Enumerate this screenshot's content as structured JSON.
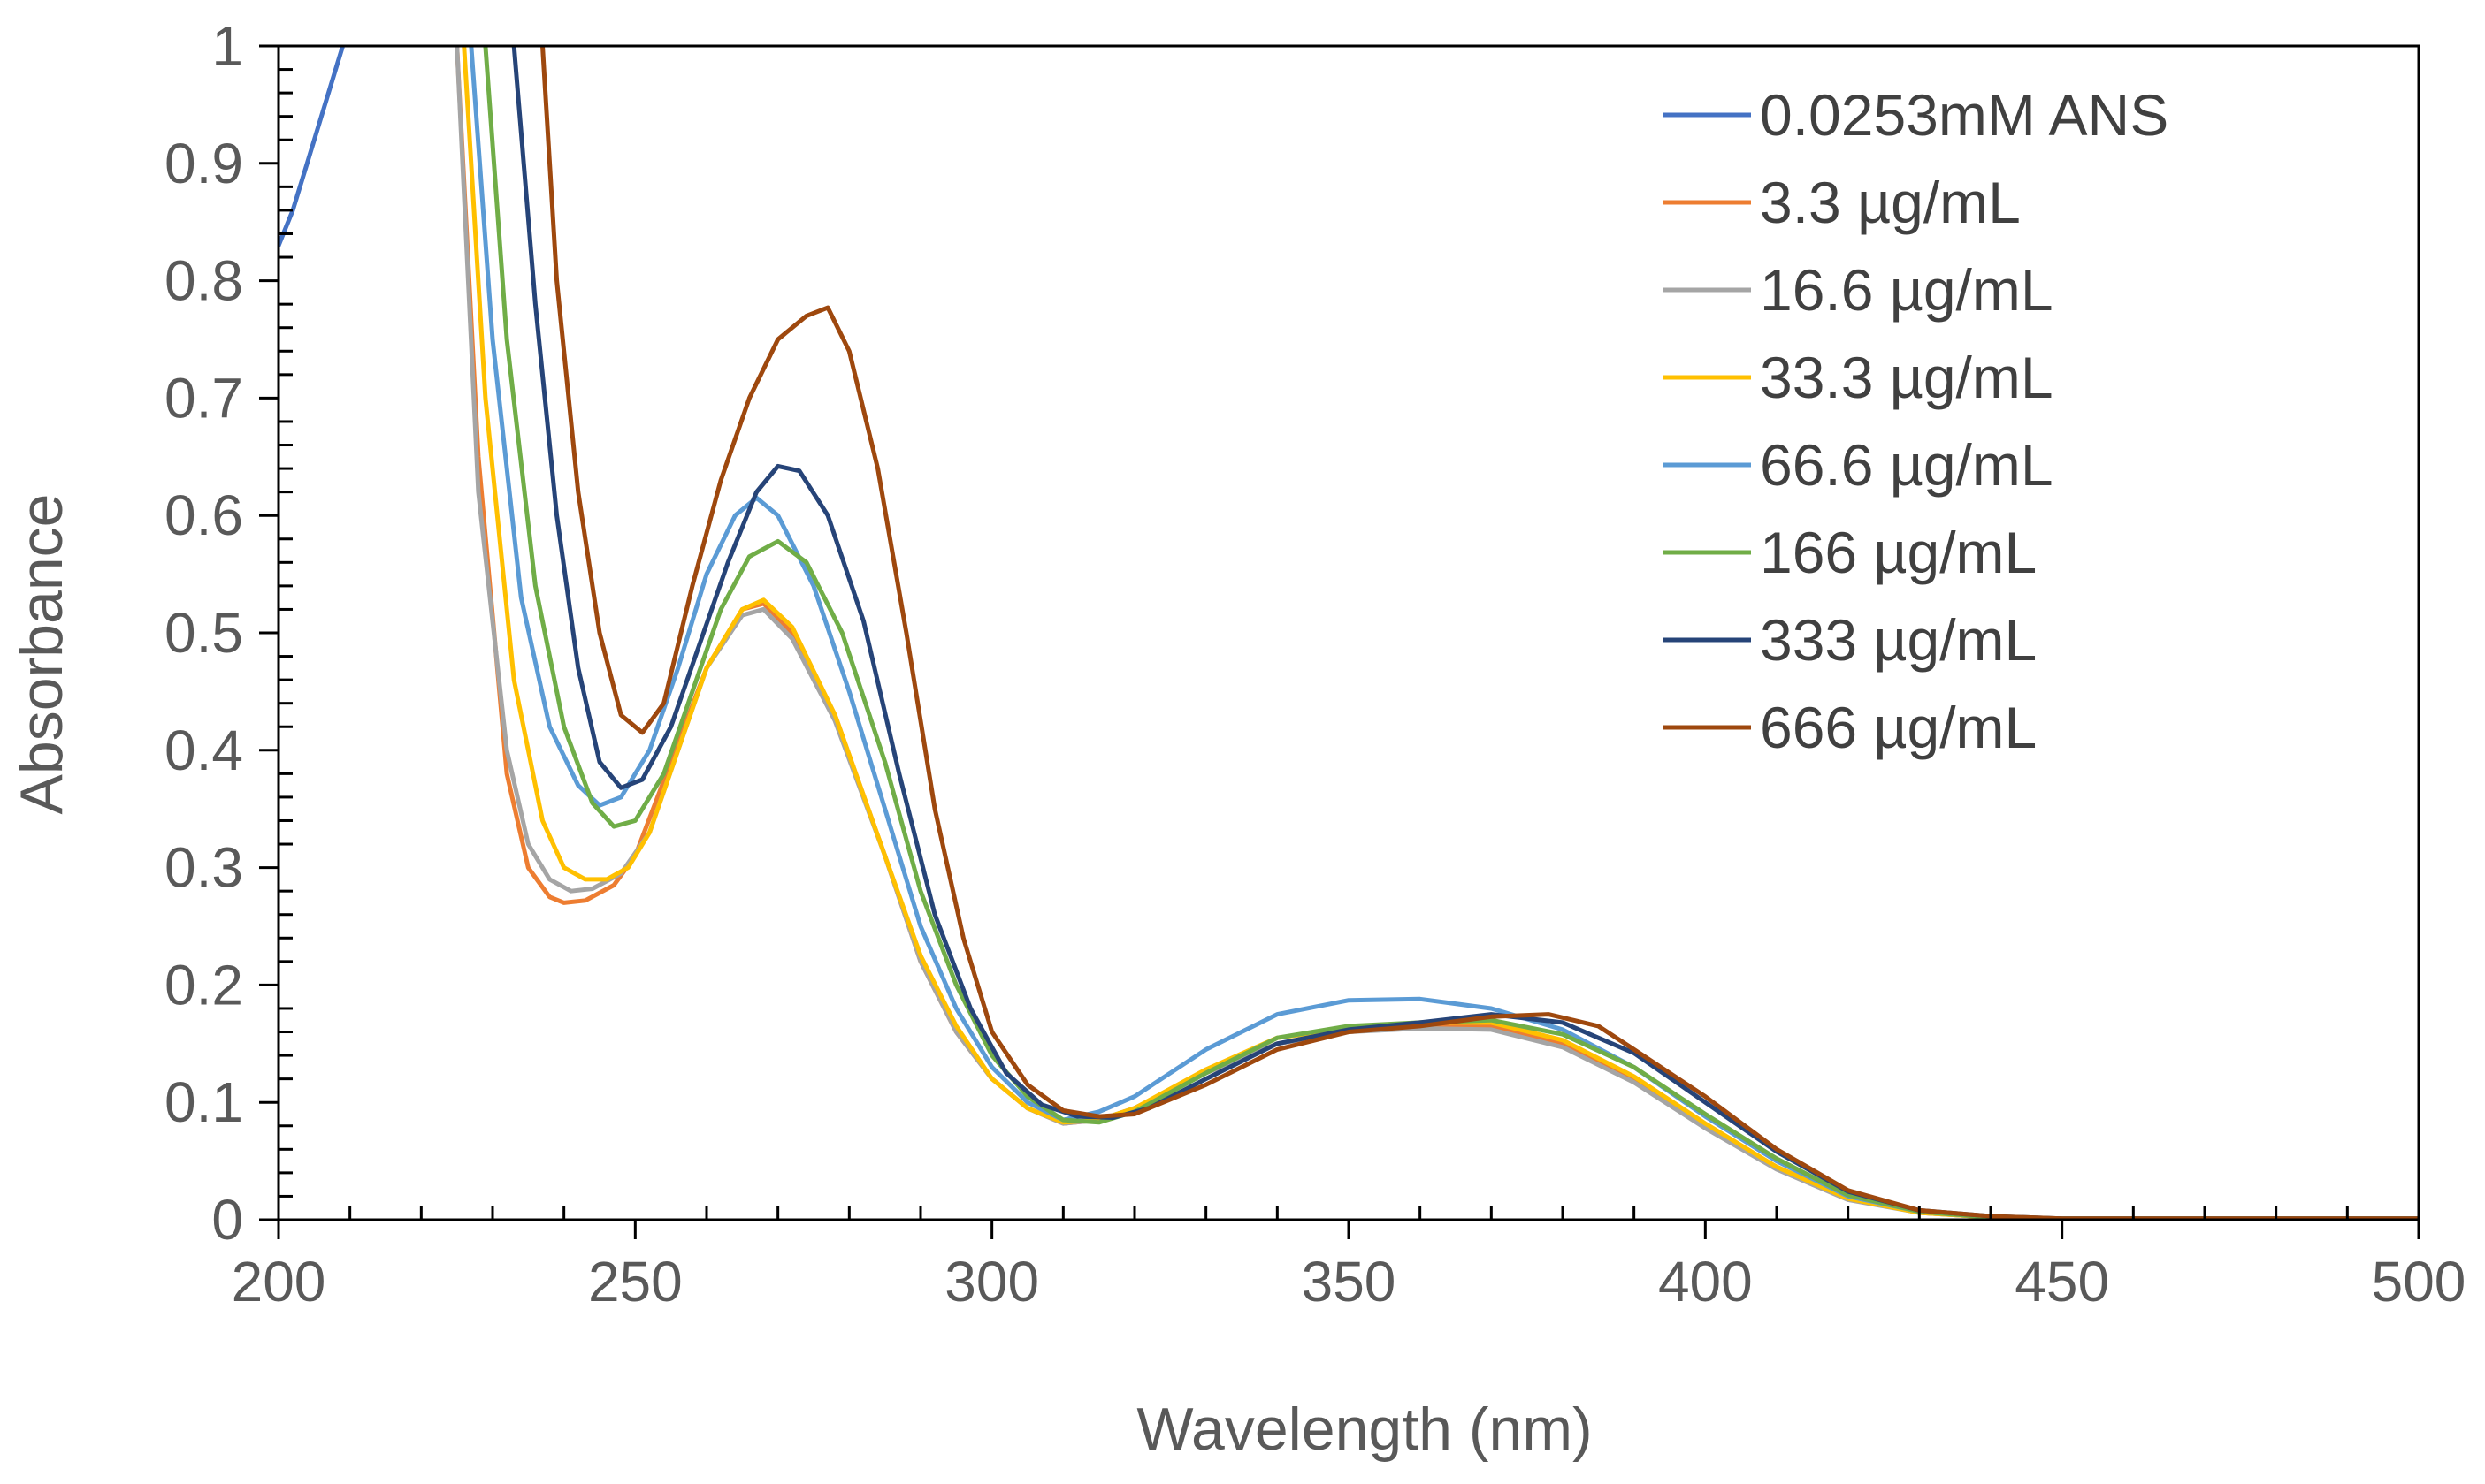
{
  "chart_data": {
    "type": "line",
    "title": "",
    "xlabel": "Wavelength (nm)",
    "ylabel": "Absorbance",
    "xlim": [
      200,
      500
    ],
    "ylim": [
      0,
      1
    ],
    "x_ticks": [
      200,
      250,
      300,
      350,
      400,
      450,
      500
    ],
    "x_tick_labels": [
      "200",
      "250",
      "300",
      "350",
      "400",
      "450",
      "500"
    ],
    "y_ticks": [
      0,
      0.1,
      0.2,
      0.3,
      0.4,
      0.5,
      0.6,
      0.7,
      0.8,
      0.9,
      1
    ],
    "y_tick_labels": [
      "0",
      "0.1",
      "0.2",
      "0.3",
      "0.4",
      "0.5",
      "0.6",
      "0.7",
      "0.8",
      "0.9",
      "1"
    ],
    "grid": false,
    "legend_position": "top-right",
    "series": [
      {
        "name": "0.0253mM ANS",
        "color": "#4472C4",
        "points": [
          [
            200,
            0.83
          ],
          [
            202,
            0.86
          ],
          [
            204,
            0.9
          ],
          [
            206,
            0.94
          ],
          [
            208,
            0.98
          ],
          [
            209,
            1.0
          ]
        ]
      },
      {
        "name": "3.3 µg/mL",
        "color": "#ED7D31",
        "points": [
          [
            225,
            1.0
          ],
          [
            228,
            0.65
          ],
          [
            232,
            0.38
          ],
          [
            235,
            0.3
          ],
          [
            238,
            0.275
          ],
          [
            240,
            0.27
          ],
          [
            243,
            0.272
          ],
          [
            247,
            0.285
          ],
          [
            250,
            0.31
          ],
          [
            255,
            0.39
          ],
          [
            260,
            0.47
          ],
          [
            265,
            0.52
          ],
          [
            268,
            0.525
          ],
          [
            272,
            0.5
          ],
          [
            278,
            0.43
          ],
          [
            285,
            0.31
          ],
          [
            290,
            0.22
          ],
          [
            295,
            0.16
          ],
          [
            300,
            0.12
          ],
          [
            305,
            0.095
          ],
          [
            310,
            0.082
          ],
          [
            315,
            0.085
          ],
          [
            320,
            0.095
          ],
          [
            330,
            0.125
          ],
          [
            340,
            0.15
          ],
          [
            350,
            0.16
          ],
          [
            360,
            0.165
          ],
          [
            370,
            0.165
          ],
          [
            380,
            0.15
          ],
          [
            390,
            0.12
          ],
          [
            400,
            0.08
          ],
          [
            410,
            0.045
          ],
          [
            420,
            0.018
          ],
          [
            430,
            0.006
          ],
          [
            440,
            0.002
          ],
          [
            450,
            0.001
          ],
          [
            500,
            0.001
          ]
        ]
      },
      {
        "name": "16.6 µg/mL",
        "color": "#A5A5A5",
        "points": [
          [
            225,
            1.0
          ],
          [
            228,
            0.62
          ],
          [
            232,
            0.4
          ],
          [
            235,
            0.32
          ],
          [
            238,
            0.29
          ],
          [
            241,
            0.28
          ],
          [
            244,
            0.282
          ],
          [
            248,
            0.295
          ],
          [
            252,
            0.33
          ],
          [
            256,
            0.4
          ],
          [
            260,
            0.47
          ],
          [
            265,
            0.515
          ],
          [
            268,
            0.52
          ],
          [
            272,
            0.495
          ],
          [
            278,
            0.425
          ],
          [
            285,
            0.31
          ],
          [
            290,
            0.22
          ],
          [
            295,
            0.16
          ],
          [
            300,
            0.12
          ],
          [
            305,
            0.095
          ],
          [
            310,
            0.082
          ],
          [
            315,
            0.085
          ],
          [
            320,
            0.095
          ],
          [
            330,
            0.125
          ],
          [
            340,
            0.15
          ],
          [
            350,
            0.16
          ],
          [
            360,
            0.163
          ],
          [
            370,
            0.162
          ],
          [
            380,
            0.147
          ],
          [
            390,
            0.117
          ],
          [
            400,
            0.078
          ],
          [
            410,
            0.043
          ],
          [
            420,
            0.017
          ],
          [
            430,
            0.006
          ],
          [
            440,
            0.002
          ],
          [
            450,
            0.001
          ],
          [
            500,
            0.001
          ]
        ]
      },
      {
        "name": "33.3 µg/mL",
        "color": "#FFC000",
        "points": [
          [
            226,
            1.0
          ],
          [
            229,
            0.7
          ],
          [
            233,
            0.46
          ],
          [
            237,
            0.34
          ],
          [
            240,
            0.3
          ],
          [
            243,
            0.29
          ],
          [
            246,
            0.29
          ],
          [
            249,
            0.3
          ],
          [
            252,
            0.33
          ],
          [
            256,
            0.4
          ],
          [
            260,
            0.47
          ],
          [
            265,
            0.52
          ],
          [
            268,
            0.528
          ],
          [
            272,
            0.505
          ],
          [
            278,
            0.43
          ],
          [
            285,
            0.31
          ],
          [
            290,
            0.225
          ],
          [
            295,
            0.165
          ],
          [
            300,
            0.12
          ],
          [
            305,
            0.095
          ],
          [
            310,
            0.083
          ],
          [
            315,
            0.085
          ],
          [
            320,
            0.095
          ],
          [
            330,
            0.128
          ],
          [
            340,
            0.155
          ],
          [
            350,
            0.163
          ],
          [
            360,
            0.168
          ],
          [
            370,
            0.168
          ],
          [
            380,
            0.153
          ],
          [
            390,
            0.122
          ],
          [
            400,
            0.082
          ],
          [
            410,
            0.045
          ],
          [
            420,
            0.018
          ],
          [
            430,
            0.006
          ],
          [
            440,
            0.002
          ],
          [
            450,
            0.001
          ],
          [
            500,
            0.001
          ]
        ]
      },
      {
        "name": "66.6 µg/mL",
        "color": "#5B9BD5",
        "points": [
          [
            227,
            1.0
          ],
          [
            230,
            0.75
          ],
          [
            234,
            0.53
          ],
          [
            238,
            0.42
          ],
          [
            242,
            0.37
          ],
          [
            245,
            0.353
          ],
          [
            248,
            0.36
          ],
          [
            252,
            0.4
          ],
          [
            256,
            0.47
          ],
          [
            260,
            0.55
          ],
          [
            264,
            0.6
          ],
          [
            267,
            0.615
          ],
          [
            270,
            0.6
          ],
          [
            275,
            0.54
          ],
          [
            280,
            0.45
          ],
          [
            285,
            0.35
          ],
          [
            290,
            0.25
          ],
          [
            295,
            0.18
          ],
          [
            300,
            0.13
          ],
          [
            305,
            0.1
          ],
          [
            310,
            0.085
          ],
          [
            315,
            0.092
          ],
          [
            320,
            0.105
          ],
          [
            330,
            0.145
          ],
          [
            340,
            0.175
          ],
          [
            350,
            0.187
          ],
          [
            360,
            0.188
          ],
          [
            370,
            0.18
          ],
          [
            380,
            0.162
          ],
          [
            390,
            0.13
          ],
          [
            400,
            0.088
          ],
          [
            410,
            0.05
          ],
          [
            420,
            0.02
          ],
          [
            430,
            0.007
          ],
          [
            440,
            0.002
          ],
          [
            450,
            0.001
          ],
          [
            500,
            0.001
          ]
        ]
      },
      {
        "name": "166 µg/mL",
        "color": "#70AD47",
        "points": [
          [
            229,
            1.0
          ],
          [
            232,
            0.75
          ],
          [
            236,
            0.54
          ],
          [
            240,
            0.42
          ],
          [
            244,
            0.355
          ],
          [
            247,
            0.335
          ],
          [
            250,
            0.34
          ],
          [
            254,
            0.38
          ],
          [
            258,
            0.45
          ],
          [
            262,
            0.52
          ],
          [
            266,
            0.565
          ],
          [
            270,
            0.578
          ],
          [
            274,
            0.56
          ],
          [
            279,
            0.5
          ],
          [
            285,
            0.39
          ],
          [
            290,
            0.28
          ],
          [
            295,
            0.2
          ],
          [
            300,
            0.14
          ],
          [
            305,
            0.105
          ],
          [
            310,
            0.085
          ],
          [
            315,
            0.083
          ],
          [
            320,
            0.092
          ],
          [
            330,
            0.125
          ],
          [
            340,
            0.155
          ],
          [
            350,
            0.165
          ],
          [
            360,
            0.168
          ],
          [
            370,
            0.17
          ],
          [
            380,
            0.158
          ],
          [
            390,
            0.13
          ],
          [
            400,
            0.09
          ],
          [
            410,
            0.052
          ],
          [
            420,
            0.021
          ],
          [
            430,
            0.007
          ],
          [
            440,
            0.002
          ],
          [
            450,
            0.001
          ],
          [
            500,
            0.001
          ]
        ]
      },
      {
        "name": "333 µg/mL",
        "color": "#264478",
        "points": [
          [
            233,
            1.0
          ],
          [
            236,
            0.78
          ],
          [
            239,
            0.6
          ],
          [
            242,
            0.47
          ],
          [
            245,
            0.39
          ],
          [
            248,
            0.368
          ],
          [
            251,
            0.375
          ],
          [
            255,
            0.42
          ],
          [
            259,
            0.49
          ],
          [
            263,
            0.56
          ],
          [
            267,
            0.62
          ],
          [
            270,
            0.642
          ],
          [
            273,
            0.638
          ],
          [
            277,
            0.6
          ],
          [
            282,
            0.51
          ],
          [
            287,
            0.38
          ],
          [
            292,
            0.26
          ],
          [
            297,
            0.18
          ],
          [
            302,
            0.125
          ],
          [
            307,
            0.098
          ],
          [
            312,
            0.088
          ],
          [
            317,
            0.087
          ],
          [
            322,
            0.095
          ],
          [
            330,
            0.12
          ],
          [
            340,
            0.15
          ],
          [
            350,
            0.162
          ],
          [
            360,
            0.168
          ],
          [
            370,
            0.175
          ],
          [
            380,
            0.168
          ],
          [
            390,
            0.142
          ],
          [
            400,
            0.1
          ],
          [
            410,
            0.058
          ],
          [
            420,
            0.024
          ],
          [
            430,
            0.008
          ],
          [
            440,
            0.003
          ],
          [
            450,
            0.001
          ],
          [
            500,
            0.001
          ]
        ]
      },
      {
        "name": "666 µg/mL",
        "color": "#9E480E",
        "points": [
          [
            237,
            1.0
          ],
          [
            239,
            0.8
          ],
          [
            242,
            0.62
          ],
          [
            245,
            0.5
          ],
          [
            248,
            0.43
          ],
          [
            251,
            0.415
          ],
          [
            254,
            0.44
          ],
          [
            258,
            0.54
          ],
          [
            262,
            0.63
          ],
          [
            266,
            0.7
          ],
          [
            270,
            0.75
          ],
          [
            274,
            0.77
          ],
          [
            277,
            0.777
          ],
          [
            280,
            0.74
          ],
          [
            284,
            0.64
          ],
          [
            288,
            0.5
          ],
          [
            292,
            0.35
          ],
          [
            296,
            0.24
          ],
          [
            300,
            0.16
          ],
          [
            305,
            0.115
          ],
          [
            310,
            0.093
          ],
          [
            315,
            0.088
          ],
          [
            320,
            0.09
          ],
          [
            330,
            0.115
          ],
          [
            340,
            0.145
          ],
          [
            350,
            0.16
          ],
          [
            360,
            0.165
          ],
          [
            370,
            0.173
          ],
          [
            378,
            0.175
          ],
          [
            385,
            0.165
          ],
          [
            390,
            0.145
          ],
          [
            400,
            0.105
          ],
          [
            410,
            0.06
          ],
          [
            420,
            0.025
          ],
          [
            430,
            0.008
          ],
          [
            440,
            0.003
          ],
          [
            450,
            0.001
          ],
          [
            500,
            0.001
          ]
        ]
      }
    ]
  }
}
